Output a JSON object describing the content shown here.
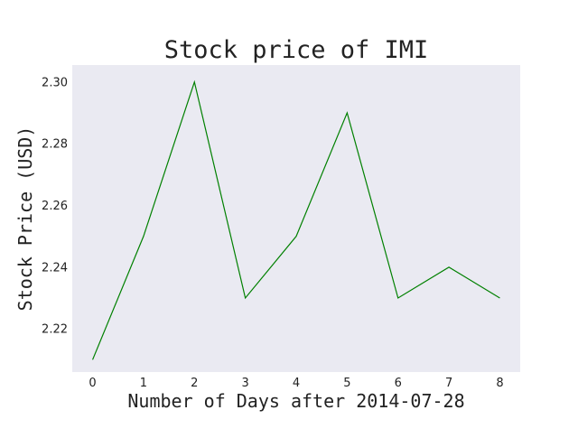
{
  "chart_data": {
    "type": "line",
    "title": "Stock price of IMI",
    "xlabel": "Number of Days after 2014-07-28",
    "ylabel": "Stock Price (USD)",
    "x": [
      0,
      1,
      2,
      3,
      4,
      5,
      6,
      7,
      8
    ],
    "series": [
      {
        "values": [
          2.21,
          2.25,
          2.3,
          2.23,
          2.25,
          2.29,
          2.23,
          2.24,
          2.23
        ],
        "color": "#008000"
      }
    ],
    "xticks": [
      "0",
      "1",
      "2",
      "3",
      "4",
      "5",
      "6",
      "7",
      "8"
    ],
    "yticks": [
      "2.22",
      "2.24",
      "2.26",
      "2.28",
      "2.30"
    ],
    "ytick_values": [
      2.22,
      2.24,
      2.26,
      2.28,
      2.3
    ],
    "xlim": [
      -0.4,
      8.4
    ],
    "ylim": [
      2.206,
      2.3055
    ],
    "grid": false,
    "background": "#eaeaf2"
  }
}
